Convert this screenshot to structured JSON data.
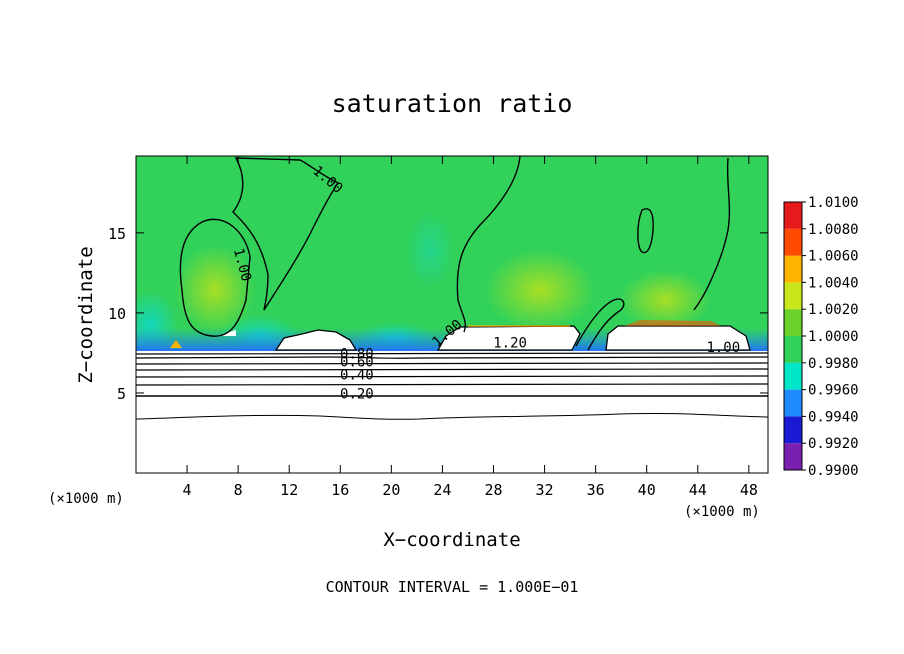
{
  "chart_data": {
    "type": "heatmap",
    "title": "saturation ratio",
    "xlabel": "X−coordinate",
    "ylabel": "Z−coordinate",
    "x_unit_left": "(×1000 m)",
    "x_unit_right": "(×1000 m)",
    "xlim": [
      0,
      49.5
    ],
    "ylim": [
      0,
      19.8
    ],
    "xticks": [
      4,
      8,
      12,
      16,
      20,
      24,
      28,
      32,
      36,
      40,
      44,
      48
    ],
    "yticks": [
      5,
      10,
      15
    ],
    "footer": "CONTOUR INTERVAL = 1.000E−01",
    "colorbar": {
      "levels": [
        "0.9900",
        "0.9920",
        "0.9940",
        "0.9960",
        "0.9980",
        "1.0000",
        "1.0020",
        "1.0040",
        "1.0060",
        "1.0080",
        "1.0100"
      ],
      "colors": [
        "#7a1fb0",
        "#1a1ad4",
        "#1f8aff",
        "#00e6c8",
        "#32d25a",
        "#6ad22a",
        "#c8e61a",
        "#ffb400",
        "#ff4a00",
        "#e61a1a",
        "#f08a8a"
      ]
    },
    "contour_labels": [
      {
        "text": "1.00",
        "x": 15.0,
        "y": 18.3,
        "rot": 40
      },
      {
        "text": "1.00",
        "x": 8.3,
        "y": 13.0,
        "rot": 75
      },
      {
        "text": "1.00",
        "x": 24.4,
        "y": 8.7,
        "rot": -40
      },
      {
        "text": "1.20",
        "x": 29.3,
        "y": 8.1,
        "rot": 0
      },
      {
        "text": "1.00",
        "x": 46.0,
        "y": 7.8,
        "rot": 0
      },
      {
        "text": "0.80",
        "x": 17.3,
        "y": 7.4,
        "rot": 0
      },
      {
        "text": "0.60",
        "x": 17.3,
        "y": 6.9,
        "rot": 0
      },
      {
        "text": "0.40",
        "x": 17.3,
        "y": 6.1,
        "rot": 0
      },
      {
        "text": "0.20",
        "x": 17.3,
        "y": 4.9,
        "rot": 0
      }
    ]
  }
}
